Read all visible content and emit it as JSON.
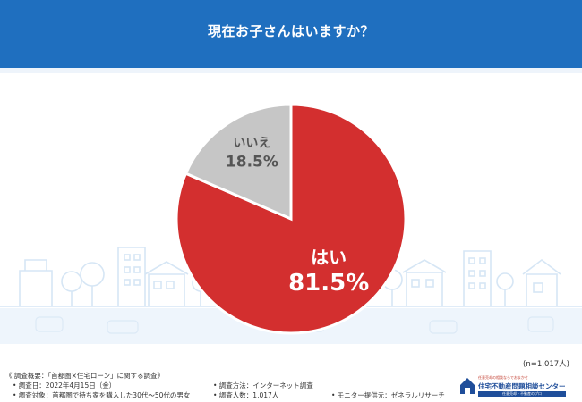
{
  "header": {
    "title": "現在お子さんはいますか？"
  },
  "chart_data": {
    "type": "pie",
    "categories": [
      "はい",
      "いいえ"
    ],
    "values": [
      81.5,
      18.5
    ],
    "value_labels": [
      "81.5%",
      "18.5%"
    ],
    "colors": [
      "#d32f2f",
      "#c6c6c6"
    ],
    "start": "12 o'clock, clockwise"
  },
  "note": {
    "sample": "(n=1,017人)"
  },
  "footer": {
    "overview": "《 調査概要：「首都圏×住宅ローン」に関する調査》",
    "date": "• 調査日：2022年4月15日（金）",
    "target": "• 調査対象：首都圏で持ち家を購入した30代〜50代の男女",
    "method": "• 調査方法：インターネット調査",
    "count": "• 調査人数：1,017人",
    "monitor": "• モニター提供元：ゼネラルリサーチ"
  },
  "logo": {
    "name": "任意売却の相談ならでおまかせ",
    "tag": "任意売却・不動産のプロ",
    "company": "住宅不動産問題相談センター"
  },
  "colors": {
    "header": "#1f6fbf",
    "city_line": "#d6e6f5"
  }
}
